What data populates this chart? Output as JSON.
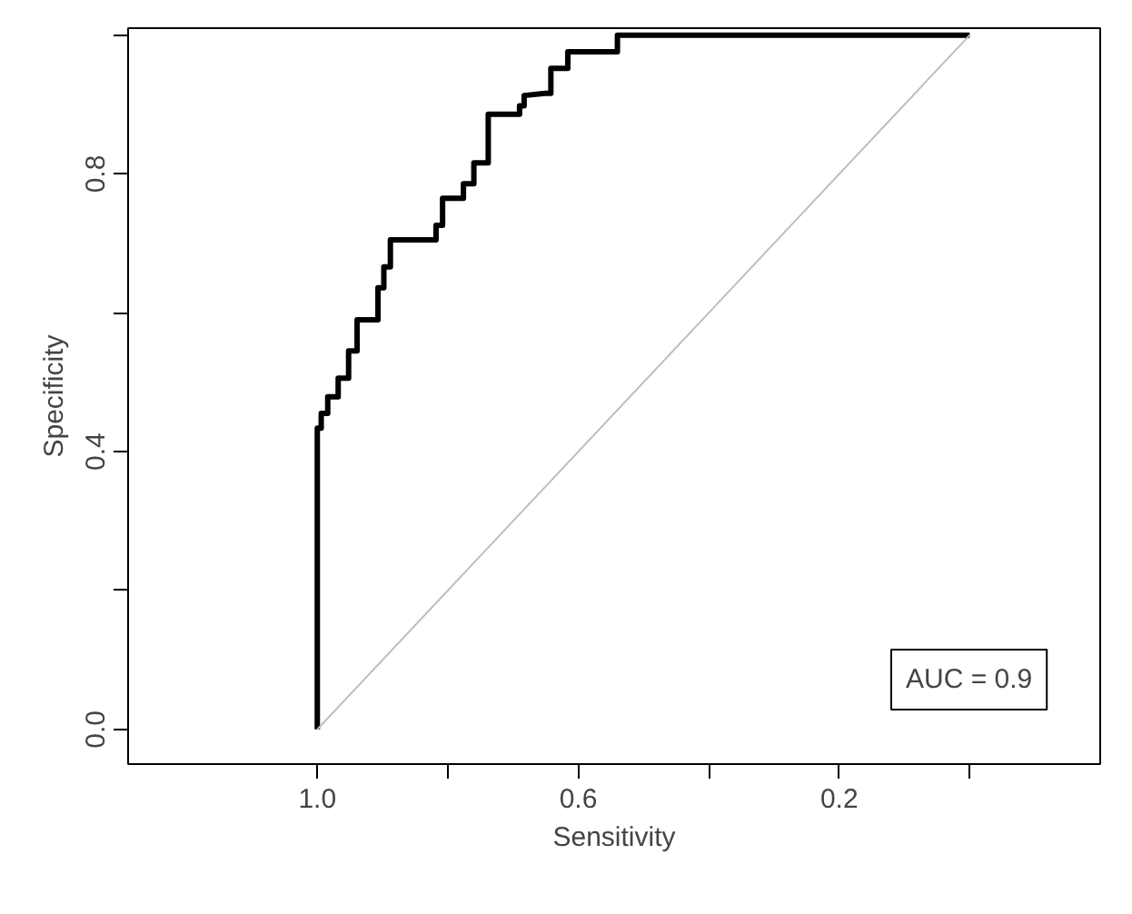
{
  "chart_data": {
    "type": "line",
    "xlabel": "Sensitivity",
    "ylabel": "Specificity",
    "annotations": [
      "AUC = 0.9"
    ],
    "xlim": [
      1.29,
      -0.2
    ],
    "ylim": [
      -0.05,
      1.01
    ],
    "xticks": [
      {
        "value": 1.0,
        "label": "1.0"
      },
      {
        "value": 0.8,
        "label": null
      },
      {
        "value": 0.6,
        "label": "0.6"
      },
      {
        "value": 0.4,
        "label": null
      },
      {
        "value": 0.2,
        "label": "0.2"
      },
      {
        "value": 0.0,
        "label": null
      }
    ],
    "yticks": [
      {
        "value": 0.0,
        "label": "0.0"
      },
      {
        "value": 0.2,
        "label": null
      },
      {
        "value": 0.4,
        "label": "0.4"
      },
      {
        "value": 0.6,
        "label": null
      },
      {
        "value": 0.8,
        "label": "0.8"
      },
      {
        "value": 1.0,
        "label": null
      }
    ],
    "grid": false,
    "marker": "none",
    "line_style": "solid",
    "series": [
      {
        "color": "#000000",
        "x": [
          1.0,
          1.0,
          0.994,
          0.994,
          0.984,
          0.984,
          0.968,
          0.968,
          0.952,
          0.952,
          0.939,
          0.939,
          0.914,
          0.907,
          0.907,
          0.898,
          0.898,
          0.888,
          0.888,
          0.824,
          0.818,
          0.818,
          0.808,
          0.808,
          0.776,
          0.776,
          0.76,
          0.76,
          0.738,
          0.738,
          0.69,
          0.69,
          0.683,
          0.683,
          0.651,
          0.642,
          0.642,
          0.616,
          0.616,
          0.54,
          0.54,
          0.0
        ],
        "values": [
          0.0,
          0.434,
          0.434,
          0.455,
          0.455,
          0.479,
          0.479,
          0.506,
          0.506,
          0.545,
          0.545,
          0.59,
          0.59,
          0.59,
          0.636,
          0.636,
          0.666,
          0.666,
          0.705,
          0.705,
          0.705,
          0.726,
          0.726,
          0.765,
          0.765,
          0.786,
          0.786,
          0.816,
          0.816,
          0.886,
          0.886,
          0.898,
          0.898,
          0.913,
          0.916,
          0.916,
          0.952,
          0.952,
          0.976,
          0.976,
          1.0,
          1.0
        ]
      },
      {
        "color": "#bebebe",
        "x": [
          1.0,
          0.0
        ],
        "values": [
          0.0,
          1.0
        ]
      }
    ]
  }
}
